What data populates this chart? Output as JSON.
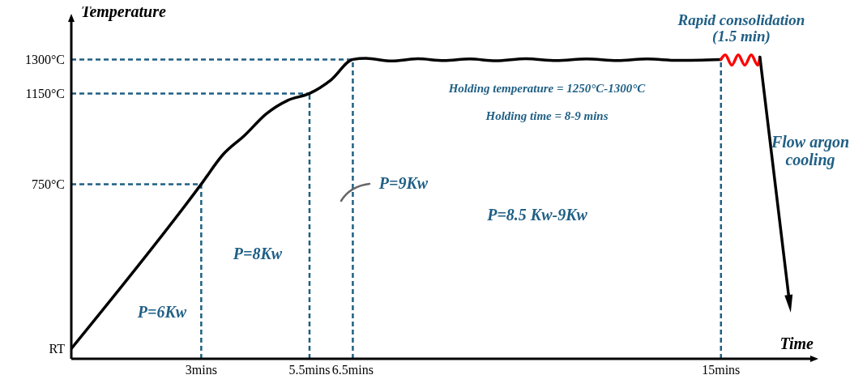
{
  "chart_data": {
    "type": "line",
    "xlabel": "Time",
    "ylabel": "Temperature",
    "xlim": [
      0,
      17.1
    ],
    "ylim": [
      -20,
      1480
    ],
    "xticks": [
      {
        "value": 3,
        "label": "3mins"
      },
      {
        "value": 5.5,
        "label": "5.5mins"
      },
      {
        "value": 6.5,
        "label": "6.5mins"
      },
      {
        "value": 15,
        "label": "15mins"
      }
    ],
    "yticks": [
      {
        "value": 25,
        "label": "RT"
      },
      {
        "value": 750,
        "label": "750°C"
      },
      {
        "value": 1150,
        "label": "1150°C"
      },
      {
        "value": 1300,
        "label": "1300°C"
      }
    ],
    "grid": false,
    "marker": "none",
    "line_style": "solid",
    "series": [
      {
        "color": "#000000",
        "x": [
          0,
          3,
          3.5,
          4,
          4.5,
          5,
          5.5,
          6,
          6.5,
          6.8,
          7.4,
          8,
          8.6,
          9.2,
          9.8,
          10.5,
          11.2,
          11.9,
          12.6,
          13.3,
          14,
          15
        ],
        "values": [
          25,
          750,
          880,
          965,
          1060,
          1120,
          1150,
          1210,
          1300,
          1305,
          1293,
          1303,
          1295,
          1302,
          1294,
          1303,
          1295,
          1302,
          1295,
          1302,
          1296,
          1300
        ]
      },
      {
        "color": "#ff0000",
        "x": [
          15,
          15.1,
          15.25,
          15.4,
          15.55,
          15.7,
          15.85,
          15.9
        ],
        "values": [
          1300,
          1320,
          1275,
          1320,
          1275,
          1320,
          1275,
          1310
        ]
      }
    ],
    "ref_lines": [
      {
        "axis": "x",
        "value": 3,
        "color": "#1f5f85",
        "line_style": "dashed"
      },
      {
        "axis": "x",
        "value": 5.5,
        "color": "#1f5f85",
        "line_style": "dashed"
      },
      {
        "axis": "x",
        "value": 6.5,
        "color": "#1f5f85",
        "line_style": "dashed"
      },
      {
        "axis": "x",
        "value": 15,
        "color": "#1f5f85",
        "line_style": "dashed"
      },
      {
        "axis": "y",
        "value": 750,
        "color": "#1f5f85",
        "line_style": "dashed"
      },
      {
        "axis": "y",
        "value": 1150,
        "color": "#1f5f85",
        "line_style": "dashed"
      },
      {
        "axis": "y",
        "value": 1300,
        "color": "#1f5f85",
        "line_style": "dashed"
      }
    ],
    "annotations": [
      "Rapid consolidation\n(1.5 min)",
      "Holding temperature = 1250°C-1300°C",
      "Holding time = 8-9 mins",
      "Flow argon\ncooling",
      "P=6Kw",
      "P=8Kw",
      "P=9Kw",
      "P=8.5 Kw-9Kw"
    ]
  }
}
